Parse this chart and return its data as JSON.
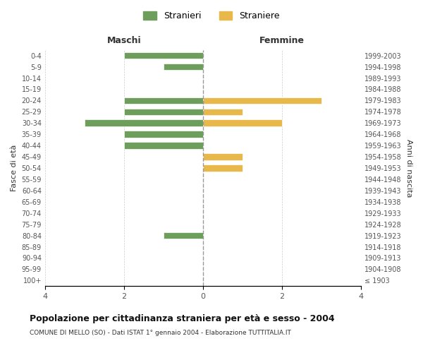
{
  "age_groups": [
    "100+",
    "95-99",
    "90-94",
    "85-89",
    "80-84",
    "75-79",
    "70-74",
    "65-69",
    "60-64",
    "55-59",
    "50-54",
    "45-49",
    "40-44",
    "35-39",
    "30-34",
    "25-29",
    "20-24",
    "15-19",
    "10-14",
    "5-9",
    "0-4"
  ],
  "birth_years": [
    "≤ 1903",
    "1904-1908",
    "1909-1913",
    "1914-1918",
    "1919-1923",
    "1924-1928",
    "1929-1933",
    "1934-1938",
    "1939-1943",
    "1944-1948",
    "1949-1953",
    "1954-1958",
    "1959-1963",
    "1964-1968",
    "1969-1973",
    "1974-1978",
    "1979-1983",
    "1984-1988",
    "1989-1993",
    "1994-1998",
    "1999-2003"
  ],
  "maschi": [
    0,
    0,
    0,
    0,
    1,
    0,
    0,
    0,
    0,
    0,
    0,
    0,
    2,
    2,
    3,
    2,
    2,
    0,
    0,
    1,
    2
  ],
  "femmine": [
    0,
    0,
    0,
    0,
    0,
    0,
    0,
    0,
    0,
    0,
    1,
    1,
    0,
    0,
    2,
    1,
    3,
    0,
    0,
    0,
    0
  ],
  "maschi_color": "#6e9e5c",
  "femmine_color": "#e8b84b",
  "title": "Popolazione per cittadinanza straniera per età e sesso - 2004",
  "subtitle": "COMUNE DI MELLO (SO) - Dati ISTAT 1° gennaio 2004 - Elaborazione TUTTITALIA.IT",
  "xlabel_left": "Maschi",
  "xlabel_right": "Femmine",
  "ylabel_left": "Fasce di età",
  "ylabel_right": "Anni di nascita",
  "legend_stranieri": "Stranieri",
  "legend_straniere": "Straniere",
  "xlim": 4,
  "background_color": "#ffffff",
  "grid_color": "#cccccc"
}
